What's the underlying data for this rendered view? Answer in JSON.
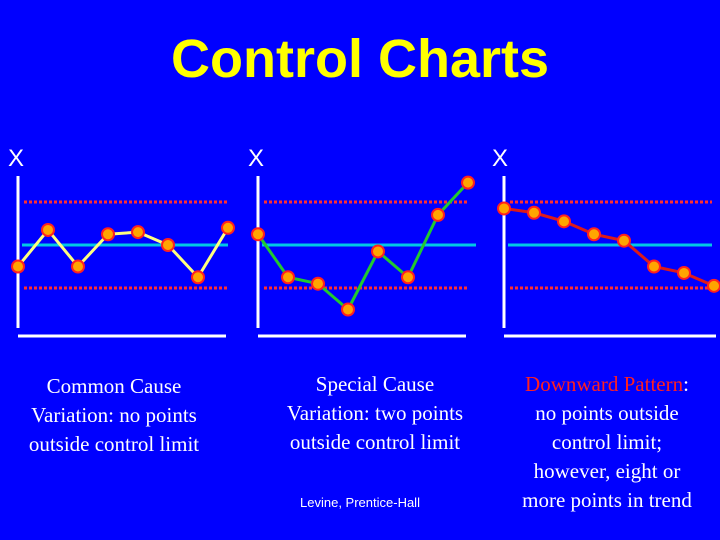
{
  "title": "Control Charts",
  "credit": "Levine, Prentice-Hall",
  "colors": {
    "background": "#0000ff",
    "title": "#ffff00",
    "centerline": "#00c8e6",
    "control_limit": "#ff3030",
    "point_fill": "#ffa500",
    "point_stroke": "#ff2020"
  },
  "chart_data": [
    {
      "type": "line",
      "ylabel": "X",
      "series_color": "#ffff80",
      "caption": {
        "line1": "Common Cause",
        "line2": "Variation: no points",
        "line3": "outside control limit"
      },
      "values": [
        -1.0,
        0.7,
        -1.0,
        0.5,
        0.6,
        0.0,
        -1.5,
        0.8
      ],
      "center": 0,
      "ucl": 2.0,
      "lcl": -2.0
    },
    {
      "type": "line",
      "ylabel": "X",
      "series_color": "#22c830",
      "caption": {
        "line1": "Special Cause",
        "line2": "Variation: two points",
        "line3": "outside control limit"
      },
      "values": [
        0.5,
        -1.5,
        -1.8,
        -3.0,
        -0.3,
        -1.5,
        1.4,
        2.9
      ],
      "center": 0,
      "ucl": 2.0,
      "lcl": -2.0
    },
    {
      "type": "line",
      "ylabel": "X",
      "series_color": "#dc1a1a",
      "caption": {
        "line1": "Downward Pattern",
        "line1_suffix": ":",
        "line2": "no points outside",
        "line3": "control limit;",
        "line4": "however, eight or",
        "line5": "more points in trend"
      },
      "values": [
        1.7,
        1.5,
        1.1,
        0.5,
        0.2,
        -1.0,
        -1.3,
        -1.9
      ],
      "center": 0,
      "ucl": 2.0,
      "lcl": -2.0
    }
  ]
}
